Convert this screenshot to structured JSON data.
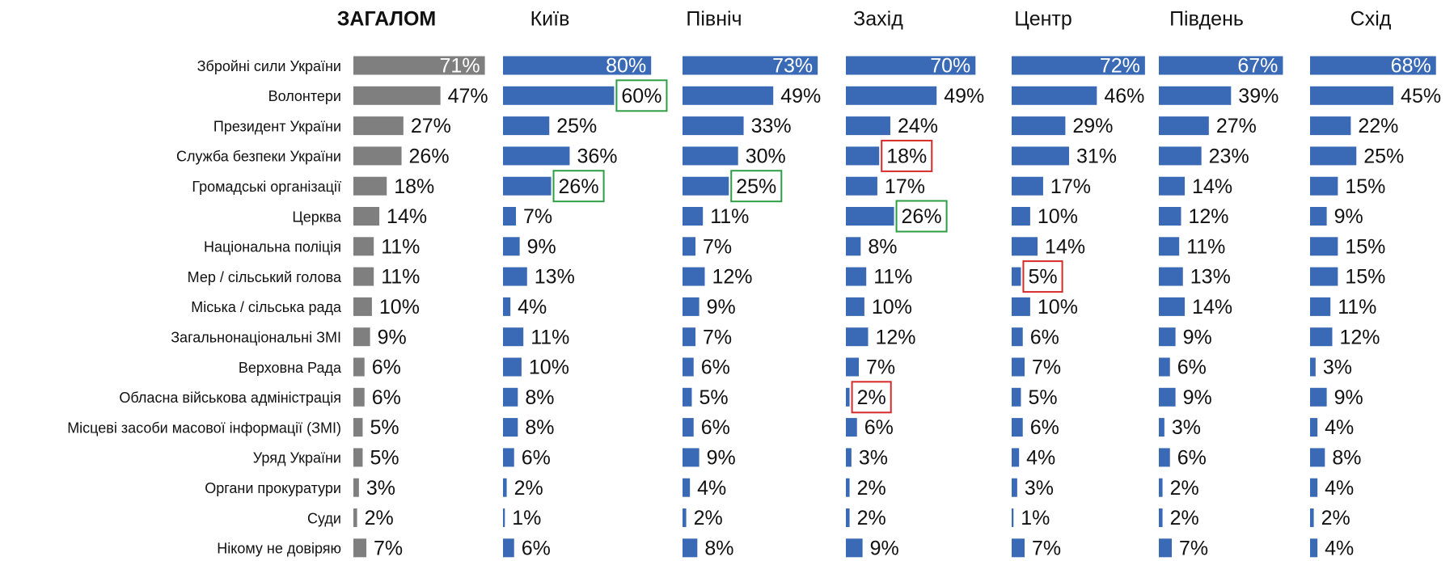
{
  "chart_data": {
    "type": "bar",
    "orientation": "horizontal",
    "categories": [
      "Збройні сили України",
      "Волонтери",
      "Президент України",
      "Служба безпеки України",
      "Громадські організації",
      "Церква",
      "Національна поліція",
      "Мер / сільський голова",
      "Міська / сільська рада",
      "Загальнонаціональні ЗМІ",
      "Верховна Рада",
      "Обласна військова адміністрація",
      "Місцеві засоби масової інформації (ЗМІ)",
      "Уряд України",
      "Органи прокуратури",
      "Суди",
      "Нікому не довіряю"
    ],
    "series": [
      {
        "name": "ЗАГАЛОМ",
        "color": "#7f7f7f",
        "bold": true,
        "values": [
          71,
          47,
          27,
          26,
          18,
          14,
          11,
          11,
          10,
          9,
          6,
          6,
          5,
          5,
          3,
          2,
          7
        ],
        "value_labels": [
          "71%",
          "47%",
          "27%",
          "26%",
          "18%",
          "14%",
          "11%",
          "11%",
          "10%",
          "9%",
          "6%",
          "6%",
          "5%",
          "5%",
          "3%",
          "2%",
          "7%"
        ],
        "box_colors": [
          null,
          null,
          null,
          null,
          null,
          null,
          null,
          null,
          null,
          null,
          null,
          null,
          null,
          null,
          null,
          null,
          null
        ]
      },
      {
        "name": "Київ",
        "color": "#3a6ab5",
        "values": [
          80,
          60,
          25,
          36,
          26,
          7,
          9,
          13,
          4,
          11,
          10,
          8,
          8,
          6,
          2,
          1,
          6
        ],
        "value_labels": [
          "80%",
          "60%",
          "25%",
          "36%",
          "26%",
          "7%",
          "9%",
          "13%",
          "4%",
          "11%",
          "10%",
          "8%",
          "8%",
          "6%",
          "2%",
          "1%",
          "6%"
        ],
        "box_colors": [
          null,
          "#2e9e44",
          null,
          null,
          "#2e9e44",
          null,
          null,
          null,
          null,
          null,
          null,
          null,
          null,
          null,
          null,
          null,
          null
        ]
      },
      {
        "name": "Північ",
        "color": "#3a6ab5",
        "values": [
          73,
          49,
          33,
          30,
          25,
          11,
          7,
          12,
          9,
          7,
          6,
          5,
          6,
          9,
          4,
          2,
          8
        ],
        "value_labels": [
          "73%",
          "49%",
          "33%",
          "30%",
          "25%",
          "11%",
          "7%",
          "12%",
          "9%",
          "7%",
          "6%",
          "5%",
          "6%",
          "9%",
          "4%",
          "2%",
          "8%"
        ],
        "box_colors": [
          null,
          null,
          null,
          null,
          "#2e9e44",
          null,
          null,
          null,
          null,
          null,
          null,
          null,
          null,
          null,
          null,
          null,
          null
        ]
      },
      {
        "name": "Захід",
        "color": "#3a6ab5",
        "values": [
          70,
          49,
          24,
          18,
          17,
          26,
          8,
          11,
          10,
          12,
          7,
          2,
          6,
          3,
          2,
          2,
          9
        ],
        "value_labels": [
          "70%",
          "49%",
          "24%",
          "18%",
          "17%",
          "26%",
          "8%",
          "11%",
          "10%",
          "12%",
          "7%",
          "2%",
          "6%",
          "3%",
          "2%",
          "2%",
          "9%"
        ],
        "box_colors": [
          null,
          null,
          null,
          "#d62a2a",
          null,
          "#2e9e44",
          null,
          null,
          null,
          null,
          null,
          "#d62a2a",
          null,
          null,
          null,
          null,
          null
        ]
      },
      {
        "name": "Центр",
        "color": "#3a6ab5",
        "values": [
          72,
          46,
          29,
          31,
          17,
          10,
          14,
          5,
          10,
          6,
          7,
          5,
          6,
          4,
          3,
          1,
          7
        ],
        "value_labels": [
          "72%",
          "46%",
          "29%",
          "31%",
          "17%",
          "10%",
          "14%",
          "5%",
          "10%",
          "6%",
          "7%",
          "5%",
          "6%",
          "4%",
          "3%",
          "1%",
          "7%"
        ],
        "box_colors": [
          null,
          null,
          null,
          null,
          null,
          null,
          null,
          "#d62a2a",
          null,
          null,
          null,
          null,
          null,
          null,
          null,
          null,
          null
        ]
      },
      {
        "name": "Південь",
        "color": "#3a6ab5",
        "values": [
          67,
          39,
          27,
          23,
          14,
          12,
          11,
          13,
          14,
          9,
          6,
          9,
          3,
          6,
          2,
          2,
          7
        ],
        "value_labels": [
          "67%",
          "39%",
          "27%",
          "23%",
          "14%",
          "12%",
          "11%",
          "13%",
          "14%",
          "9%",
          "6%",
          "9%",
          "3%",
          "6%",
          "2%",
          "2%",
          "7%"
        ],
        "box_colors": [
          null,
          null,
          null,
          null,
          null,
          null,
          null,
          null,
          null,
          null,
          null,
          null,
          null,
          null,
          null,
          null,
          null
        ]
      },
      {
        "name": "Схід",
        "color": "#3a6ab5",
        "values": [
          68,
          45,
          22,
          25,
          15,
          9,
          15,
          15,
          11,
          12,
          3,
          9,
          4,
          8,
          4,
          2,
          4
        ],
        "value_labels": [
          "68%",
          "45%",
          "22%",
          "25%",
          "15%",
          "9%",
          "15%",
          "15%",
          "11%",
          "12%",
          "3%",
          "9%",
          "4%",
          "8%",
          "4%",
          "2%",
          "4%"
        ],
        "box_colors": [
          null,
          null,
          null,
          null,
          null,
          null,
          null,
          null,
          null,
          null,
          null,
          null,
          null,
          null,
          null,
          null,
          null
        ]
      }
    ]
  }
}
